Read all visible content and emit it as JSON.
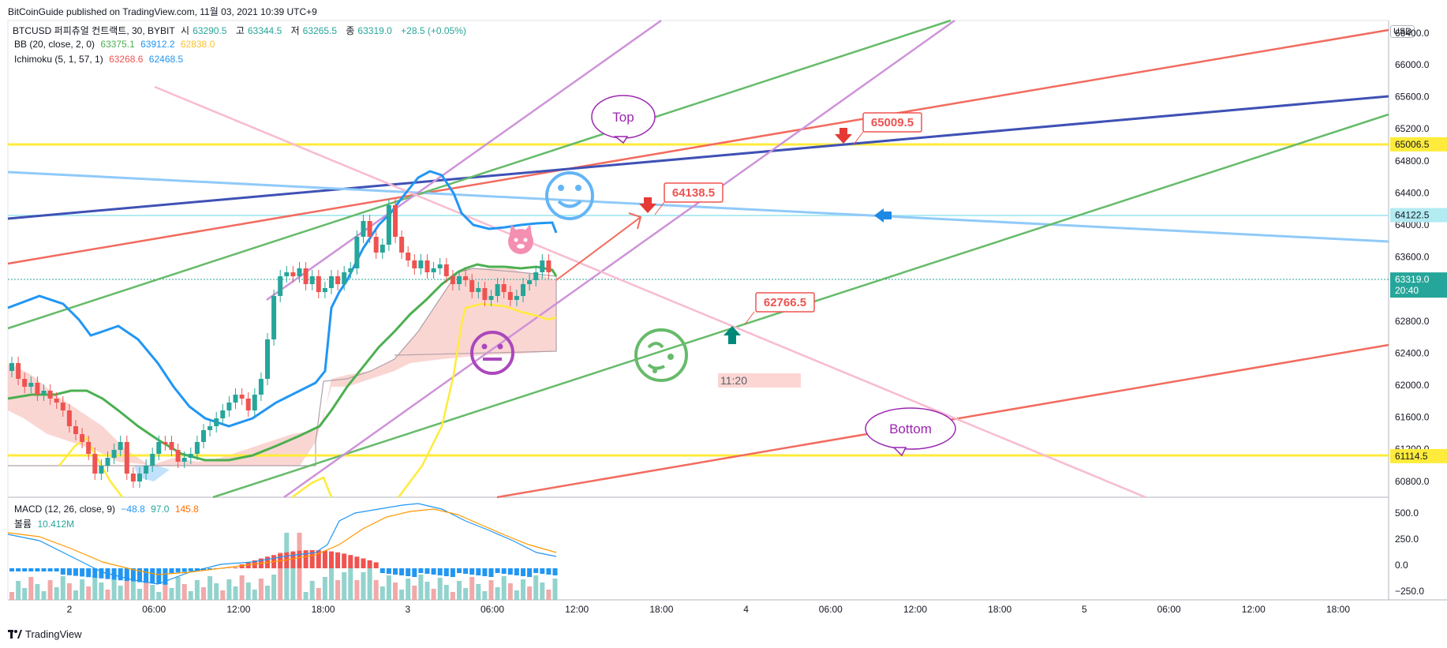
{
  "publisher": "BitCoinGuide published on TradingView.com, 11월 03, 2021 10:39 UTC+9",
  "symbol_line": {
    "symbol": "BTCUSD 퍼피츄얼 컨트랙트, 30, BYBIT",
    "open_label": "시",
    "open": "63290.5",
    "high_label": "고",
    "high": "63344.5",
    "low_label": "저",
    "low": "63265.5",
    "close_label": "종",
    "close": "63319.0",
    "change": "+28.5 (+0.05%)"
  },
  "indicators": {
    "bb": {
      "label": "BB (20, close, 2, 0)",
      "v1": "63375.1",
      "v2": "63912.2",
      "v3": "62838.0"
    },
    "ichimoku": {
      "label": "Ichimoku (5, 1, 57, 1)",
      "v1": "63268.6",
      "v2": "62468.5"
    }
  },
  "macd": {
    "label": "MACD (12, 26, close, 9)",
    "v1": "−48.8",
    "v2": "97.0",
    "v3": "145.8"
  },
  "volume": {
    "label": "볼륨",
    "value": "10.412M"
  },
  "currency": "USD",
  "price_axis": {
    "ticks": [
      "66000.0",
      "65600.0",
      "65200.0",
      "64800.0",
      "64400.0",
      "64000.0",
      "63600.0",
      "63200.0",
      "62800.0",
      "62400.0",
      "62000.0",
      "61600.0",
      "61200.0",
      "60800.0"
    ],
    "top_cut": "66400.0",
    "highlight_labels": [
      {
        "text": "65006.5",
        "bg": "#ffeb3b",
        "fg": "#131722"
      },
      {
        "text": "64122.5",
        "bg": "#b2ebf2",
        "fg": "#131722"
      },
      {
        "text": "63319.0",
        "bg": "#26a69a",
        "fg": "#ffffff",
        "sub": "20:40"
      },
      {
        "text": "61114.5",
        "bg": "#ffeb3b",
        "fg": "#131722"
      }
    ]
  },
  "macd_axis": {
    "ticks": [
      "500.0",
      "250.0",
      "0.0",
      "−250.0"
    ]
  },
  "time_axis": {
    "ticks": [
      "2",
      "06:00",
      "12:00",
      "18:00",
      "3",
      "06:00",
      "12:00",
      "18:00",
      "4",
      "06:00",
      "12:00",
      "18:00",
      "5",
      "06:00",
      "12:00",
      "18:00"
    ]
  },
  "annotations": {
    "top_bubble": "Top",
    "bottom_bubble": "Bottom",
    "price_tags": [
      "65009.5",
      "64138.5",
      "62766.5"
    ],
    "time_box": "11:20"
  },
  "colors": {
    "up": "#26a69a",
    "down": "#ef5350",
    "bb_basis": "#4caf50",
    "ichi_blue": "#2196f3",
    "yellow": "#ffeb3b",
    "red_line": "#f26b5e",
    "green_line": "#66bb6a",
    "purple_line": "#ce93d8",
    "pink_line": "#f8bbd0",
    "navy_line": "#3f51b5",
    "blue_line": "#90caf9"
  },
  "footer": {
    "brand": "TradingView"
  }
}
